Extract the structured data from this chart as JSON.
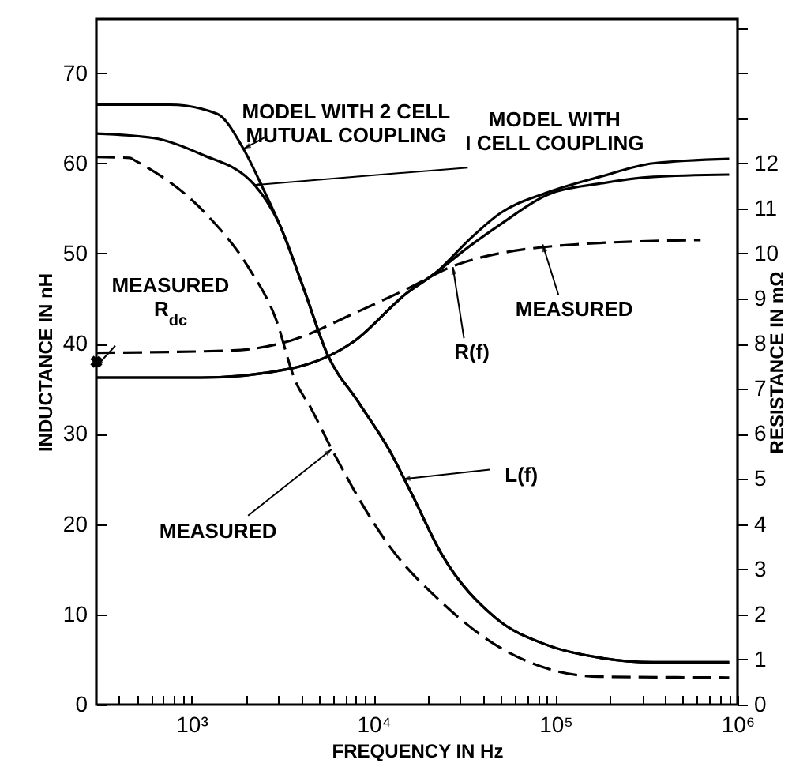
{
  "chart_data": {
    "type": "line",
    "xlabel": "FREQUENCY IN Hz",
    "ylabel": "INDUCTANCE IN nH",
    "y2label": "RESISTANCE IN mΩ",
    "log": "x",
    "grid": false,
    "marker": "none",
    "xlim": [
      300,
      1000000
    ],
    "ylim": [
      0,
      76
    ],
    "y2lim": [
      0,
      15.2
    ],
    "xticks": [
      {
        "value": 400,
        "label": null
      },
      {
        "value": 500,
        "label": null
      },
      {
        "value": 600,
        "label": null
      },
      {
        "value": 700,
        "label": null
      },
      {
        "value": 800,
        "label": null
      },
      {
        "value": 900,
        "label": null
      },
      {
        "value": 1000,
        "label": "10³"
      },
      {
        "value": 2000,
        "label": null
      },
      {
        "value": 3000,
        "label": null
      },
      {
        "value": 4000,
        "label": null
      },
      {
        "value": 5000,
        "label": null
      },
      {
        "value": 6000,
        "label": null
      },
      {
        "value": 7000,
        "label": null
      },
      {
        "value": 8000,
        "label": null
      },
      {
        "value": 9000,
        "label": null
      },
      {
        "value": 10000,
        "label": "10⁴"
      },
      {
        "value": 20000,
        "label": null
      },
      {
        "value": 30000,
        "label": null
      },
      {
        "value": 40000,
        "label": null
      },
      {
        "value": 50000,
        "label": null
      },
      {
        "value": 60000,
        "label": null
      },
      {
        "value": 70000,
        "label": null
      },
      {
        "value": 80000,
        "label": null
      },
      {
        "value": 90000,
        "label": null
      },
      {
        "value": 100000,
        "label": "10⁵"
      },
      {
        "value": 200000,
        "label": null
      },
      {
        "value": 300000,
        "label": null
      },
      {
        "value": 400000,
        "label": null
      },
      {
        "value": 500000,
        "label": null
      },
      {
        "value": 600000,
        "label": null
      },
      {
        "value": 700000,
        "label": null
      },
      {
        "value": 800000,
        "label": null
      },
      {
        "value": 900000,
        "label": null
      },
      {
        "value": 1000000,
        "label": "10⁶"
      }
    ],
    "yticks": [
      0,
      10,
      20,
      30,
      40,
      50,
      60,
      70
    ],
    "y2ticks": [
      0,
      1,
      2,
      3,
      4,
      5,
      6,
      7,
      8,
      9,
      10,
      11,
      12,
      {
        "value": 13,
        "label": null
      },
      {
        "value": 14,
        "label": null
      },
      {
        "value": 15,
        "label": null
      }
    ],
    "series": [
      {
        "type": "line",
        "color": "#000000",
        "line_style": "solid",
        "x": [
          300,
          760,
          1380,
          1930,
          2500,
          3050,
          4120,
          5560,
          8280,
          12300,
          16000,
          23800,
          46900,
          90000,
          175000,
          344000,
          900000
        ],
        "values": [
          66.5,
          66.5,
          65.5,
          61.6,
          57,
          53.2,
          46.2,
          38.9,
          33.5,
          28.1,
          23.6,
          16.6,
          9.6,
          6.6,
          5.2,
          4.7,
          4.7
        ]
      },
      {
        "type": "line",
        "color": "#000000",
        "line_style": "solid",
        "x": [
          300,
          620,
          1130,
          2220,
          3050,
          4120,
          5560,
          8280,
          12300,
          16000,
          23800,
          46900,
          90000,
          175000,
          344000,
          900000
        ],
        "values": [
          63.3,
          62.8,
          61,
          57.6,
          53.2,
          46.2,
          38.9,
          33.5,
          28.1,
          23.6,
          16.6,
          9.6,
          6.6,
          5.2,
          4.7,
          4.7
        ]
      },
      {
        "type": "line",
        "color": "#000000",
        "line_style": "dashed",
        "x": [
          300,
          460,
          480,
          1200,
          2050,
          2900,
          3700,
          4550,
          5900,
          12300,
          23800,
          47000,
          90000,
          175000,
          900000
        ],
        "values": [
          60.7,
          60.6,
          60.4,
          54.4,
          48.5,
          42.8,
          36,
          32.8,
          28.3,
          17.5,
          11.3,
          6.6,
          4.0,
          3.1,
          3.0
        ]
      },
      {
        "type": "line",
        "axis": "y2",
        "color": "#000000",
        "line_style": "solid",
        "x": [
          300,
          1130,
          3510,
          7800,
          15000,
          22400,
          33400,
          50000,
          90000,
          175000,
          344000,
          900000
        ],
        "values": [
          7.25,
          7.25,
          7.45,
          8.05,
          9.1,
          9.6,
          10.3,
          10.9,
          11.35,
          11.7,
          12.0,
          12.1
        ]
      },
      {
        "type": "line",
        "axis": "y2",
        "color": "#000000",
        "line_style": "solid",
        "x": [
          300,
          1130,
          3510,
          7800,
          15000,
          22400,
          33400,
          50000,
          90000,
          175000,
          344000,
          900000
        ],
        "values": [
          7.25,
          7.25,
          7.45,
          8.05,
          9.1,
          9.6,
          10.15,
          10.65,
          11.3,
          11.55,
          11.7,
          11.75
        ]
      },
      {
        "type": "line",
        "axis": "y2",
        "color": "#000000",
        "line_style": "dashed",
        "x": [
          300,
          1680,
          3510,
          7800,
          15000,
          29000,
          127000,
          627000
        ],
        "values": [
          7.8,
          7.85,
          8.07,
          8.67,
          9.2,
          9.76,
          10.2,
          10.3
        ]
      },
      {
        "type": "scatter",
        "axis": "y2",
        "color": "#000000",
        "marker": "cross",
        "x": [
          300
        ],
        "values": [
          7.6
        ]
      }
    ],
    "annotations": [
      {
        "text": "MODEL WITH 2 CELL\nMUTUAL COUPLING",
        "x": 1930,
        "y": 61.6
      },
      {
        "text": "MODEL WITH\nI CELL COUPLING",
        "x": 2220,
        "y": 57.6
      },
      {
        "text": "MEASURED\nR$_{dc}$",
        "x": 300,
        "y": 37.5
      },
      {
        "text": "MEASURED",
        "x": 85000,
        "y": 51
      },
      {
        "text": "R(f)",
        "x": 27300,
        "y": 48.5
      },
      {
        "text": "L(f)",
        "x": 14500,
        "y": 25
      },
      {
        "text": "MEASURED",
        "x": 5900,
        "y": 28.3
      }
    ]
  }
}
